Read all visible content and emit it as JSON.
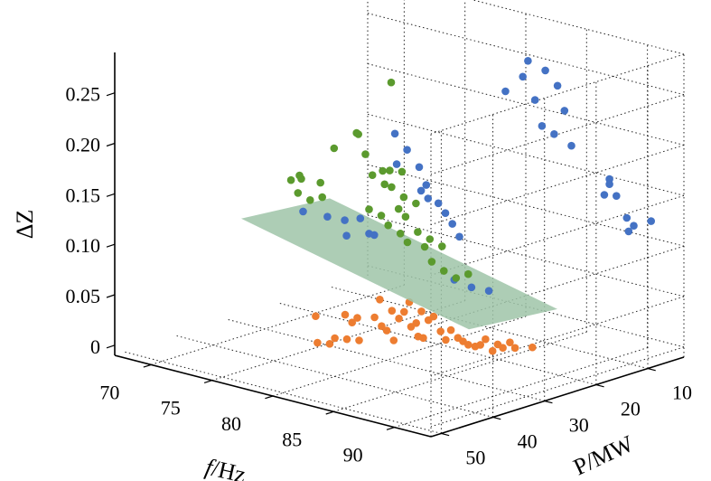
{
  "chart_data": {
    "type": "scatter",
    "title": "",
    "axis_labels": {
      "x": {
        "italic": "f",
        "rest": "/Hz"
      },
      "y": "P/MW",
      "z": "ΔZ"
    },
    "x_ticks": [
      "70",
      "75",
      "80",
      "85",
      "90"
    ],
    "y_ticks": [
      "10",
      "20",
      "30",
      "40",
      "50"
    ],
    "z_ticks": [
      "0",
      "0.05",
      "0.10",
      "0.15",
      "0.20",
      "0.25"
    ],
    "xlim": [
      67,
      93
    ],
    "ylim": [
      3,
      52
    ],
    "zlim": [
      -0.01,
      0.29
    ],
    "grid": true,
    "plane": {
      "z": 0.08,
      "color": "#9fc4a8"
    },
    "series": [
      {
        "color": "#4472c4",
        "points": [
          [
            74,
            32,
            0.122
          ],
          [
            76,
            32,
            0.123
          ],
          [
            77,
            31,
            0.121
          ],
          [
            77,
            28,
            0.118
          ],
          [
            79,
            30,
            0.111
          ],
          [
            79,
            26,
            0.205
          ],
          [
            80,
            26,
            0.192
          ],
          [
            81,
            26,
            0.178
          ],
          [
            82,
            27,
            0.165
          ],
          [
            83,
            27,
            0.15
          ],
          [
            84,
            28,
            0.145
          ],
          [
            85,
            29,
            0.139
          ],
          [
            86,
            30,
            0.131
          ],
          [
            80,
            28,
            0.181
          ],
          [
            82,
            28,
            0.161
          ],
          [
            83,
            29,
            0.158
          ],
          [
            78,
            33,
            0.112
          ],
          [
            79,
            31,
            0.114
          ],
          [
            84,
            12,
            0.27
          ],
          [
            85,
            11,
            0.262
          ],
          [
            84,
            13,
            0.256
          ],
          [
            86,
            11,
            0.25
          ],
          [
            83,
            14,
            0.24
          ],
          [
            85,
            13,
            0.236
          ],
          [
            87,
            12,
            0.23
          ],
          [
            86,
            14,
            0.215
          ],
          [
            87,
            14,
            0.21
          ],
          [
            88,
            13,
            0.2
          ],
          [
            89,
            8,
            0.162
          ],
          [
            89,
            8,
            0.157
          ],
          [
            90,
            9,
            0.15
          ],
          [
            89,
            9,
            0.148
          ],
          [
            90,
            7,
            0.125
          ],
          [
            91,
            8,
            0.122
          ],
          [
            91,
            9,
            0.118
          ],
          [
            92,
            7,
            0.128
          ],
          [
            86,
            31,
            0.09
          ],
          [
            87,
            30,
            0.084
          ],
          [
            88,
            29,
            0.082
          ]
        ]
      },
      {
        "color": "#5b9a2e",
        "points": [
          [
            72,
            28,
            0.145
          ],
          [
            73,
            30,
            0.148
          ],
          [
            73,
            32,
            0.15
          ],
          [
            74,
            33,
            0.142
          ],
          [
            75,
            33,
            0.138
          ],
          [
            75,
            31,
            0.152
          ],
          [
            76,
            33,
            0.144
          ],
          [
            74,
            26,
            0.175
          ],
          [
            75,
            24,
            0.19
          ],
          [
            76,
            26,
            0.195
          ],
          [
            77,
            27,
            0.18
          ],
          [
            78,
            28,
            0.164
          ],
          [
            79,
            28,
            0.158
          ],
          [
            80,
            29,
            0.16
          ],
          [
            81,
            29,
            0.153
          ],
          [
            82,
            29,
            0.15
          ],
          [
            79,
            31,
            0.138
          ],
          [
            80,
            31,
            0.135
          ],
          [
            81,
            32,
            0.13
          ],
          [
            82,
            32,
            0.125
          ],
          [
            83,
            33,
            0.121
          ],
          [
            84,
            32,
            0.118
          ],
          [
            85,
            33,
            0.108
          ],
          [
            86,
            33,
            0.102
          ],
          [
            87,
            33,
            0.098
          ],
          [
            88,
            33,
            0.105
          ],
          [
            77,
            22,
            0.243
          ],
          [
            78,
            26,
            0.165
          ],
          [
            79,
            27,
            0.17
          ],
          [
            81,
            30,
            0.143
          ],
          [
            82,
            31,
            0.14
          ],
          [
            80,
            27,
            0.172
          ],
          [
            83,
            31,
            0.128
          ],
          [
            84,
            31,
            0.124
          ],
          [
            85,
            31,
            0.12
          ]
        ]
      },
      {
        "color": "#ed7d31",
        "points": [
          [
            79,
            41,
            0.022
          ],
          [
            80,
            41,
            0.024
          ],
          [
            80,
            40,
            0.028
          ],
          [
            81,
            40,
            0.03
          ],
          [
            78,
            39,
            0.042
          ],
          [
            82,
            40,
            0.032
          ],
          [
            81,
            38,
            0.048
          ],
          [
            82,
            37,
            0.05
          ],
          [
            83,
            38,
            0.046
          ],
          [
            83,
            36,
            0.058
          ],
          [
            84,
            37,
            0.055
          ],
          [
            85,
            35,
            0.062
          ],
          [
            86,
            35,
            0.06
          ],
          [
            86,
            36,
            0.058
          ],
          [
            85,
            36,
            0.052
          ],
          [
            84,
            36,
            0.06
          ],
          [
            82,
            36,
            0.066
          ],
          [
            83,
            37,
            0.04
          ],
          [
            84,
            38,
            0.035
          ],
          [
            87,
            36,
            0.05
          ],
          [
            86,
            37,
            0.042
          ],
          [
            87,
            35,
            0.04
          ],
          [
            87,
            34,
            0.048
          ],
          [
            88,
            34,
            0.04
          ],
          [
            88,
            33,
            0.035
          ],
          [
            89,
            33,
            0.038
          ],
          [
            89,
            32,
            0.042
          ],
          [
            90,
            31,
            0.035
          ],
          [
            90,
            32,
            0.04
          ],
          [
            91,
            31,
            0.038
          ],
          [
            92,
            30,
            0.04
          ],
          [
            91,
            32,
            0.045
          ],
          [
            85,
            37,
            0.05
          ],
          [
            86,
            38,
            0.045
          ],
          [
            88,
            35,
            0.045
          ],
          [
            89,
            34,
            0.038
          ],
          [
            90,
            33,
            0.035
          ],
          [
            81,
            39,
            0.045
          ],
          [
            80,
            38,
            0.048
          ],
          [
            84,
            35,
            0.068
          ]
        ]
      }
    ]
  }
}
